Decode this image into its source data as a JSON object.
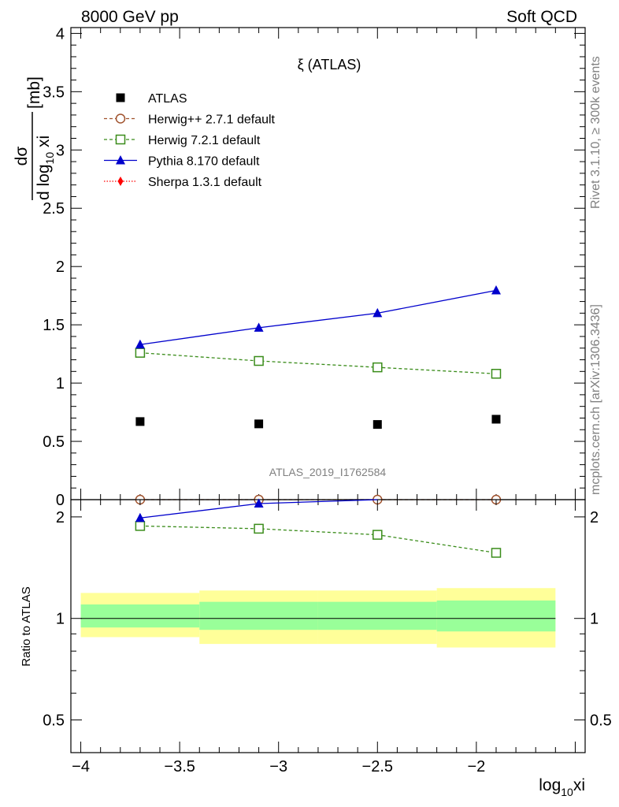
{
  "header": {
    "left": "8000 GeV pp",
    "right": "Soft QCD"
  },
  "side_text": {
    "rivet": "Rivet 3.1.10, ≥ 300k events",
    "mcplots": "mcplots.cern.ch [arXiv:1306.3436]"
  },
  "chart_data": [
    {
      "type": "scatter",
      "title": "ξ (ATLAS)",
      "watermark": "ATLAS_2019_I1762584",
      "ylabel": {
        "num": "dσ",
        "den_a": "d log",
        "den_sub": "10",
        "den_b": " xi",
        "unit": " [mb]"
      },
      "xlim": [
        -4.05,
        -1.45
      ],
      "ylim": [
        0,
        4.05
      ],
      "x_ticks": [
        -4,
        -3.5,
        -3,
        -2.5,
        -2
      ],
      "y_ticks": [
        0,
        0.5,
        1,
        1.5,
        2,
        2.5,
        3,
        3.5,
        4
      ],
      "y_tick_labels": [
        "0",
        "0.5",
        "1",
        "1.5",
        "2",
        "2.5",
        "3",
        "3.5",
        "4"
      ],
      "x": [
        -3.7,
        -3.1,
        -2.5,
        -1.9
      ],
      "series": [
        {
          "name": "ATLAS",
          "values": [
            0.67,
            0.65,
            0.645,
            0.69
          ],
          "color": "#000000",
          "marker": "square-filled",
          "line": "none"
        },
        {
          "name": "Herwig++ 2.7.1 default",
          "values": [
            0.0,
            0.0,
            0.0,
            0.0
          ],
          "color": "#a0522d",
          "marker": "circle-open",
          "line": "dashed"
        },
        {
          "name": "Herwig 7.2.1 default",
          "values": [
            1.26,
            1.19,
            1.135,
            1.08
          ],
          "color": "#3a8c1a",
          "marker": "square-open",
          "line": "dashed"
        },
        {
          "name": "Pythia 8.170 default",
          "values": [
            1.33,
            1.475,
            1.6,
            1.795
          ],
          "color": "#0000cc",
          "marker": "triangle-filled",
          "line": "solid"
        },
        {
          "name": "Sherpa 1.3.1 default",
          "values": [],
          "color": "#ff0000",
          "marker": "diamond-filled",
          "line": "dotted"
        }
      ]
    },
    {
      "type": "scatter",
      "ylabel": "Ratio to ATLAS",
      "xlabel": {
        "a": "log",
        "sub": "10",
        "b": "xi"
      },
      "xlim": [
        -4.05,
        -1.45
      ],
      "ylim": [
        0.4,
        2.25
      ],
      "y_scale": "log",
      "x_ticks": [
        -4,
        -3.5,
        -3,
        -2.5,
        -2
      ],
      "x_tick_labels": [
        "−4",
        "−3.5",
        "−3",
        "−2.5",
        "−2"
      ],
      "y_ticks": [
        0.5,
        1,
        2
      ],
      "y_tick_labels": [
        "0.5",
        "1",
        "2"
      ],
      "bins": [
        [
          -4.0,
          -3.4
        ],
        [
          -3.4,
          -2.8
        ],
        [
          -2.8,
          -2.2
        ],
        [
          -2.2,
          -1.6
        ]
      ],
      "band_outer": [
        [
          0.88,
          1.19
        ],
        [
          0.84,
          1.21
        ],
        [
          0.84,
          1.21
        ],
        [
          0.82,
          1.23
        ]
      ],
      "band_inner": [
        [
          0.94,
          1.1
        ],
        [
          0.925,
          1.12
        ],
        [
          0.925,
          1.12
        ],
        [
          0.915,
          1.13
        ]
      ],
      "band_colors": {
        "outer": "#ffff99",
        "inner": "#99ff99"
      },
      "x": [
        -3.7,
        -3.1,
        -2.5,
        -1.9
      ],
      "series": [
        {
          "name": "Herwig 7.2.1 default",
          "values": [
            1.88,
            1.845,
            1.77,
            1.565
          ],
          "color": "#3a8c1a",
          "marker": "square-open",
          "line": "dashed"
        },
        {
          "name": "Pythia 8.170 default",
          "values": [
            1.985,
            2.19,
            2.4
          ],
          "color": "#0000cc",
          "marker": "triangle-filled",
          "line": "solid"
        }
      ]
    }
  ]
}
